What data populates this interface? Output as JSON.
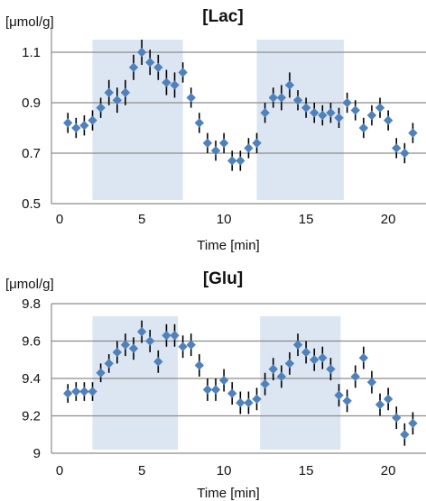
{
  "colors": {
    "marker": "#4f81bd",
    "band": "#dce6f2",
    "errorbar": "#000000",
    "grid": "#8c8c8c"
  },
  "chart_data": [
    {
      "type": "scatter",
      "title": "[Lac]",
      "ylabel": "[μmol/g]",
      "xlabel": "Time [min]",
      "xlim": [
        -0.5,
        22.3
      ],
      "ylim": [
        0.5,
        1.2
      ],
      "xticks": [
        "0",
        "5",
        "10",
        "15",
        "20"
      ],
      "yticks": [
        "0.5",
        "0.7",
        "0.9",
        "1.1"
      ],
      "grid": true,
      "shaded_intervals": [
        [
          2,
          7.5
        ],
        [
          12,
          17.3
        ]
      ],
      "series": [
        {
          "x": [
            0.5,
            1.0,
            1.5,
            2.0,
            2.5,
            3.0,
            3.5,
            4.0,
            4.5,
            5.0,
            5.5,
            6.0,
            6.5,
            7.0,
            7.5,
            8.0,
            8.5,
            9.0,
            9.5,
            10.0,
            10.5,
            11.0,
            11.5,
            12.0,
            12.5,
            13.0,
            13.5,
            14.0,
            14.5,
            15.0,
            15.5,
            16.0,
            16.5,
            17.0,
            17.5,
            18.0,
            18.5,
            19.0,
            19.5,
            20.0,
            20.5,
            21.0,
            21.5
          ],
          "y": [
            0.82,
            0.8,
            0.81,
            0.83,
            0.88,
            0.94,
            0.91,
            0.94,
            1.04,
            1.1,
            1.06,
            1.04,
            0.98,
            0.97,
            1.02,
            0.92,
            0.82,
            0.74,
            0.71,
            0.74,
            0.67,
            0.67,
            0.72,
            0.74,
            0.86,
            0.92,
            0.92,
            0.97,
            0.91,
            0.88,
            0.86,
            0.85,
            0.86,
            0.84,
            0.9,
            0.87,
            0.8,
            0.85,
            0.88,
            0.83,
            0.72,
            0.7,
            0.78
          ],
          "error": [
            0.04,
            0.04,
            0.04,
            0.04,
            0.04,
            0.05,
            0.05,
            0.05,
            0.05,
            0.05,
            0.05,
            0.05,
            0.05,
            0.05,
            0.04,
            0.04,
            0.04,
            0.04,
            0.04,
            0.04,
            0.04,
            0.04,
            0.04,
            0.04,
            0.04,
            0.04,
            0.05,
            0.05,
            0.04,
            0.04,
            0.04,
            0.04,
            0.04,
            0.04,
            0.04,
            0.04,
            0.04,
            0.04,
            0.04,
            0.04,
            0.04,
            0.04,
            0.04
          ]
        }
      ]
    },
    {
      "type": "scatter",
      "title": "[Glu]",
      "ylabel": "[μmol/g]",
      "xlabel": "Time [min]",
      "xlim": [
        -0.5,
        22.3
      ],
      "ylim": [
        9.0,
        9.8
      ],
      "xticks": [
        "0",
        "5",
        "10",
        "15",
        "20"
      ],
      "yticks": [
        "9",
        "9.2",
        "9.4",
        "9.6",
        "9.8"
      ],
      "grid": true,
      "shaded_intervals": [
        [
          2,
          7.2
        ],
        [
          12.2,
          17.1
        ]
      ],
      "series": [
        {
          "x": [
            0.5,
            1.0,
            1.5,
            2.0,
            2.5,
            3.0,
            3.5,
            4.0,
            4.5,
            5.0,
            5.5,
            6.0,
            6.5,
            7.0,
            7.5,
            8.0,
            8.5,
            9.0,
            9.5,
            10.0,
            10.5,
            11.0,
            11.5,
            12.0,
            12.5,
            13.0,
            13.5,
            14.0,
            14.5,
            15.0,
            15.5,
            16.0,
            16.5,
            17.0,
            17.5,
            18.0,
            18.5,
            19.0,
            19.5,
            20.0,
            20.5,
            21.0,
            21.5
          ],
          "y": [
            9.32,
            9.33,
            9.33,
            9.33,
            9.43,
            9.48,
            9.54,
            9.58,
            9.56,
            9.65,
            9.6,
            9.49,
            9.63,
            9.63,
            9.57,
            9.58,
            9.47,
            9.34,
            9.34,
            9.39,
            9.32,
            9.27,
            9.27,
            9.29,
            9.37,
            9.45,
            9.41,
            9.48,
            9.58,
            9.54,
            9.5,
            9.51,
            9.45,
            9.31,
            9.28,
            9.41,
            9.51,
            9.38,
            9.26,
            9.29,
            9.19,
            9.1,
            9.16
          ],
          "error": [
            0.05,
            0.05,
            0.05,
            0.05,
            0.05,
            0.05,
            0.06,
            0.06,
            0.06,
            0.06,
            0.06,
            0.06,
            0.06,
            0.06,
            0.06,
            0.06,
            0.06,
            0.06,
            0.06,
            0.06,
            0.06,
            0.06,
            0.06,
            0.06,
            0.06,
            0.06,
            0.06,
            0.06,
            0.06,
            0.06,
            0.06,
            0.06,
            0.06,
            0.06,
            0.06,
            0.06,
            0.06,
            0.06,
            0.06,
            0.06,
            0.06,
            0.06,
            0.06
          ]
        }
      ]
    }
  ]
}
